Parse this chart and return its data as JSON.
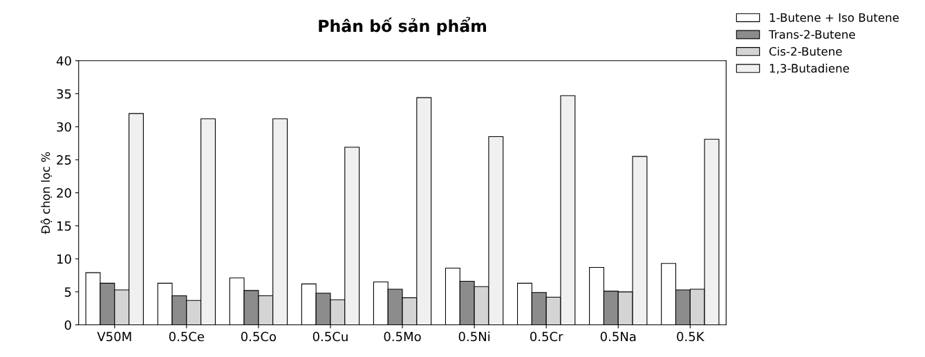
{
  "chart_data": {
    "type": "bar",
    "title": "Phân bố sản phẩm",
    "ylabel": "Độ chọn lọc %",
    "categories": [
      "V50M",
      "0.5Ce",
      "0.5Co",
      "0.5Cu",
      "0.5Mo",
      "0.5Ni",
      "0.5Cr",
      "0.5Na",
      "0.5K"
    ],
    "series": [
      {
        "name": "1-Butene + Iso Butene",
        "color": "#ffffff",
        "values": [
          7.9,
          6.3,
          7.1,
          6.2,
          6.5,
          8.6,
          6.3,
          8.7,
          9.3
        ]
      },
      {
        "name": "Trans-2-Butene",
        "color": "#8c8c8c",
        "values": [
          6.3,
          4.4,
          5.2,
          4.8,
          5.4,
          6.6,
          4.9,
          5.1,
          5.3
        ]
      },
      {
        "name": "Cis-2-Butene",
        "color": "#d4d4d4",
        "values": [
          5.3,
          3.7,
          4.4,
          3.8,
          4.1,
          5.8,
          4.2,
          5.0,
          5.4
        ]
      },
      {
        "name": "1,3-Butadiene",
        "color": "#f0f0f0",
        "values": [
          32.0,
          31.2,
          31.2,
          26.9,
          34.4,
          28.5,
          34.7,
          25.5,
          28.1
        ]
      }
    ],
    "ylim": [
      0,
      40
    ],
    "yticks": [
      0,
      5,
      10,
      15,
      20,
      25,
      30,
      35,
      40
    ],
    "grid": false,
    "legend": "top right"
  }
}
